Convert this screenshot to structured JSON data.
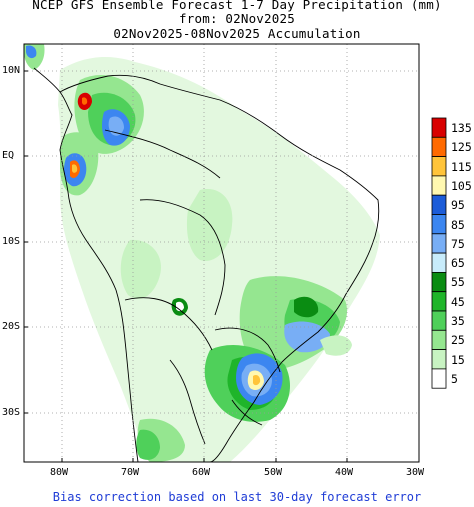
{
  "title": {
    "line1": "NCEP GFS Ensemble Forecast 1-7 Day Precipitation (mm)",
    "line2": "from: 02Nov2025",
    "line3": "02Nov2025-08Nov2025 Accumulation"
  },
  "map": {
    "lat_labels": [
      "10N",
      "EQ",
      "10S",
      "20S",
      "30S"
    ],
    "lon_labels": [
      "80W",
      "70W",
      "60W",
      "50W",
      "40W",
      "30W"
    ],
    "grid": "dotted",
    "region": "South America"
  },
  "colorbar": {
    "labels": [
      "135",
      "125",
      "115",
      "105",
      "95",
      "85",
      "75",
      "65",
      "55",
      "45",
      "35",
      "25",
      "15",
      "5"
    ],
    "colors": [
      "#d80000",
      "#ff6a00",
      "#ffc43a",
      "#fff8b0",
      "#1c5cd8",
      "#3c86f0",
      "#78aef5",
      "#c8ecfb",
      "#0a8c12",
      "#1fb52a",
      "#4fd05a",
      "#95e690",
      "#c8f3c2",
      "#ffffff"
    ]
  },
  "footer": "Bias correction based on last 30-day forecast error"
}
